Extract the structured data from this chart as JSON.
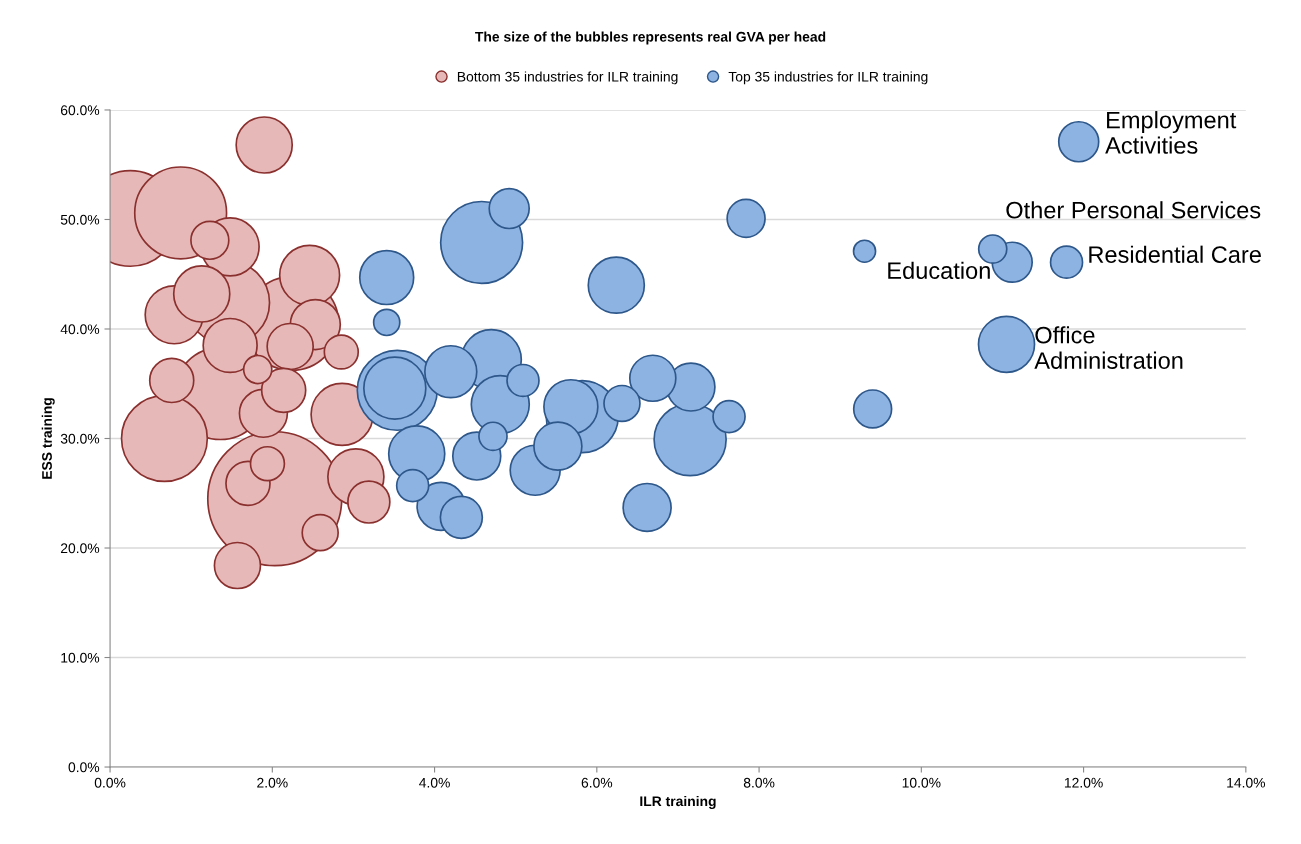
{
  "chart_data": {
    "type": "bubble",
    "title": "The size of the bubbles represents real GVA per head",
    "xlabel": "ILR training",
    "ylabel": "ESS training",
    "series": [
      {
        "name": "Bottom 35 industries for ILR training",
        "color": "#e6b9b8",
        "x": [
          1.9,
          0.25,
          0.87,
          1.23,
          1.48,
          2.46,
          1.13,
          0.79,
          1.45,
          2.24,
          2.53,
          2.85,
          2.22,
          1.48,
          0.76,
          1.36,
          1.89,
          2.14,
          0.67,
          2.86,
          2.03,
          1.94,
          1.7,
          3.03,
          3.19,
          1.57,
          2.59,
          1.82
        ],
        "values": [
          56.8,
          50.1,
          50.6,
          48.1,
          47.5,
          44.9,
          43.2,
          41.3,
          42.4,
          40.5,
          40.4,
          37.9,
          38.4,
          38.5,
          35.3,
          34.1,
          32.3,
          34.4,
          30.0,
          32.2,
          24.5,
          27.7,
          25.9,
          26.5,
          24.2,
          18.4,
          21.4,
          36.3
        ],
        "sizes": [
          0.175,
          0.51,
          0.47,
          0.08,
          0.187,
          0.2,
          0.175,
          0.187,
          0.39,
          0.49,
          0.139,
          0.064,
          0.118,
          0.162,
          0.108,
          0.47,
          0.128,
          0.108,
          0.41,
          0.214,
          1.0,
          0.064,
          0.108,
          0.175,
          0.098,
          0.118,
          0.072,
          0.044
        ]
      },
      {
        "name": "Top 35 industries for ILR training",
        "color": "#8db3e2",
        "x": [
          4.92,
          4.58,
          3.41,
          3.41,
          3.54,
          3.51,
          4.2,
          4.7,
          5.09,
          4.81,
          4.72,
          3.78,
          3.73,
          4.08,
          4.33,
          4.52,
          5.82,
          5.68,
          5.52,
          5.24,
          6.31,
          6.69,
          7.16,
          7.15,
          7.63,
          6.62,
          6.24,
          7.84,
          11.94,
          9.3,
          10.88,
          11.12,
          11.79,
          11.05,
          9.4
        ],
        "values": [
          51.0,
          47.9,
          44.7,
          40.6,
          34.4,
          34.6,
          36.1,
          37.2,
          35.3,
          33.1,
          30.2,
          28.6,
          25.7,
          23.8,
          22.8,
          28.4,
          32.0,
          32.9,
          29.3,
          27.1,
          33.2,
          35.5,
          34.7,
          29.9,
          32.0,
          23.7,
          44.0,
          50.1,
          57.1,
          47.1,
          47.3,
          46.1,
          46.1,
          38.6,
          32.7
        ],
        "sizes": [
          0.089,
          0.374,
          0.162,
          0.038,
          0.356,
          0.214,
          0.15,
          0.2,
          0.057,
          0.187,
          0.044,
          0.175,
          0.057,
          0.128,
          0.098,
          0.128,
          0.289,
          0.162,
          0.128,
          0.139,
          0.072,
          0.118,
          0.128,
          0.289,
          0.057,
          0.128,
          0.175,
          0.08,
          0.089,
          0.027,
          0.044,
          0.089,
          0.057,
          0.175,
          0.08
        ]
      }
    ],
    "annotations": [
      {
        "text": "Employment\nActivities",
        "x": 11.94,
        "y": 57.1
      },
      {
        "text": "Other Personal Services",
        "x": 11.12,
        "y": 46.1
      },
      {
        "text": "Residential Care",
        "x": 11.79,
        "y": 46.1
      },
      {
        "text": "Education",
        "x": 10.88,
        "y": 47.3
      },
      {
        "text": "Office\nAdministration",
        "x": 11.05,
        "y": 38.6
      }
    ],
    "xlim": [
      0,
      14
    ],
    "ylim": [
      0,
      60
    ],
    "xticks": [
      {
        "value": 0,
        "label": "0.0%"
      },
      {
        "value": 2,
        "label": "2.0%"
      },
      {
        "value": 4,
        "label": "4.0%"
      },
      {
        "value": 6,
        "label": "6.0%"
      },
      {
        "value": 8,
        "label": "8.0%"
      },
      {
        "value": 10,
        "label": "10.0%"
      },
      {
        "value": 12,
        "label": "12.0%"
      },
      {
        "value": 14,
        "label": "14.0%"
      }
    ],
    "yticks": [
      {
        "value": 0,
        "label": "0.0%"
      },
      {
        "value": 10,
        "label": "10.0%"
      },
      {
        "value": 20,
        "label": "20.0%"
      },
      {
        "value": 30,
        "label": "30.0%"
      },
      {
        "value": 40,
        "label": "40.0%"
      },
      {
        "value": 50,
        "label": "50.0%"
      },
      {
        "value": 60,
        "label": "60.0%"
      }
    ],
    "grid": "y",
    "legend": "top",
    "marker": "circle"
  }
}
